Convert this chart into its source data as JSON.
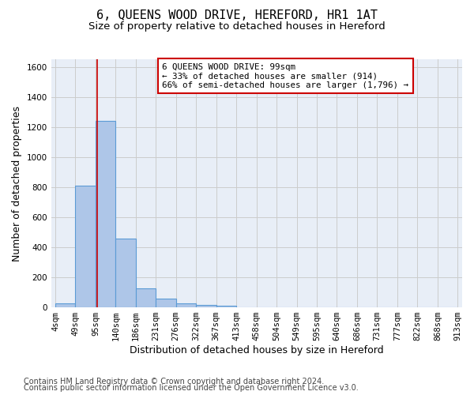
{
  "title": "6, QUEENS WOOD DRIVE, HEREFORD, HR1 1AT",
  "subtitle": "Size of property relative to detached houses in Hereford",
  "xlabel": "Distribution of detached houses by size in Hereford",
  "ylabel": "Number of detached properties",
  "footer_line1": "Contains HM Land Registry data © Crown copyright and database right 2024.",
  "footer_line2": "Contains public sector information licensed under the Open Government Licence v3.0.",
  "bar_edges": [
    4,
    49,
    95,
    140,
    186,
    231,
    276,
    322,
    367,
    413,
    458,
    504,
    549,
    595,
    640,
    686,
    731,
    777,
    822,
    868,
    913
  ],
  "bar_heights": [
    25,
    810,
    1240,
    455,
    125,
    60,
    28,
    18,
    12,
    0,
    0,
    0,
    0,
    0,
    0,
    0,
    0,
    0,
    0,
    0
  ],
  "bar_color": "#aec6e8",
  "bar_edgecolor": "#5b9bd5",
  "annotation_text": "6 QUEENS WOOD DRIVE: 99sqm\n← 33% of detached houses are smaller (914)\n66% of semi-detached houses are larger (1,796) →",
  "vline_x": 99,
  "vline_color": "#cc0000",
  "annotation_box_edgecolor": "#cc0000",
  "annotation_box_facecolor": "#ffffff",
  "ylim": [
    0,
    1650
  ],
  "yticks": [
    0,
    200,
    400,
    600,
    800,
    1000,
    1200,
    1400,
    1600
  ],
  "grid_color": "#cccccc",
  "bg_color": "#e8eef7",
  "fig_bg_color": "#ffffff",
  "title_fontsize": 11,
  "subtitle_fontsize": 9.5,
  "label_fontsize": 9,
  "tick_fontsize": 7.5,
  "footer_fontsize": 7
}
